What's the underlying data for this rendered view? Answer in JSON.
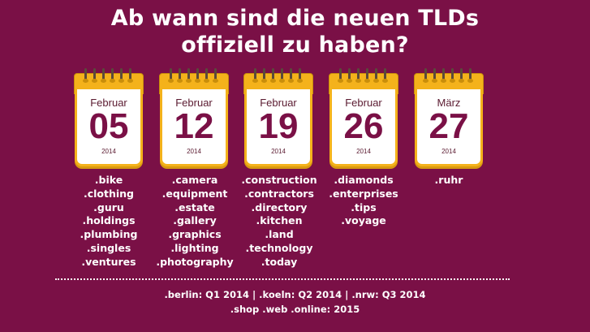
{
  "title_line1": "Ab wann sind die neuen TLDs",
  "title_line2": "offiziell zu haben?",
  "colors": {
    "background": "#7a1046",
    "calendar_binder": "#f4b21b",
    "calendar_sheet": "#ffffff",
    "day_number": "#7a1046",
    "text": "#ffffff"
  },
  "calendars": [
    {
      "month": "Februar",
      "day": "05",
      "year": "2014",
      "domains": [
        ".bike",
        ".clothing",
        ".guru",
        ".holdings",
        ".plumbing",
        ".singles",
        ".ventures"
      ]
    },
    {
      "month": "Februar",
      "day": "12",
      "year": "2014",
      "domains": [
        ".camera",
        ".equipment",
        ".estate",
        ".gallery",
        ".graphics",
        ".lighting",
        ".photography"
      ]
    },
    {
      "month": "Februar",
      "day": "19",
      "year": "2014",
      "domains": [
        ".construction",
        ".contractors",
        ".directory",
        ".kitchen",
        ".land",
        ".technology",
        ".today"
      ]
    },
    {
      "month": "Februar",
      "day": "26",
      "year": "2014",
      "domains": [
        ".diamonds",
        ".enterprises",
        ".tips",
        ".voyage"
      ]
    },
    {
      "month": "März",
      "day": "27",
      "year": "2014",
      "domains": [
        ".ruhr"
      ]
    }
  ],
  "footer_line1": ".berlin: Q1 2014 | .koeln: Q2 2014 | .nrw: Q3 2014",
  "footer_line2": ".shop .web .online: 2015"
}
